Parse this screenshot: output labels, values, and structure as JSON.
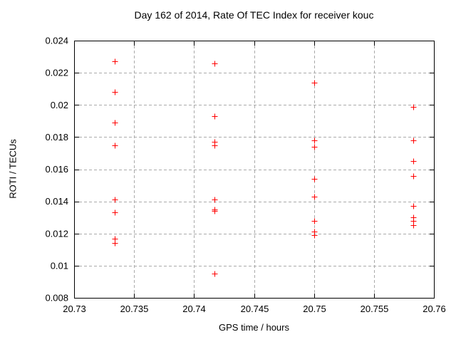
{
  "chart_data": {
    "type": "scatter",
    "title": "Day 162 of 2014, Rate Of TEC Index for receiver kouc",
    "xlabel": "GPS time / hours",
    "ylabel": "ROTI / TECUs",
    "xlim": [
      20.73,
      20.76
    ],
    "ylim": [
      0.008,
      0.024
    ],
    "xticks": [
      20.73,
      20.735,
      20.74,
      20.745,
      20.75,
      20.755,
      20.76
    ],
    "xtick_labels": [
      "20.73",
      "20.735",
      "20.74",
      "20.745",
      "20.75",
      "20.755",
      "20.76"
    ],
    "yticks": [
      0.008,
      0.01,
      0.012,
      0.014,
      0.016,
      0.018,
      0.02,
      0.022,
      0.024
    ],
    "ytick_labels": [
      "0.008",
      "0.01",
      "0.012",
      "0.014",
      "0.016",
      "0.018",
      "0.02",
      "0.022",
      "0.024"
    ],
    "grid": true,
    "legend": "none",
    "marker": {
      "shape": "plus",
      "color": "#ff0000",
      "size": 9
    },
    "series": [
      {
        "name": "ROTI",
        "points": [
          [
            20.7334,
            0.0227
          ],
          [
            20.7334,
            0.0208
          ],
          [
            20.7334,
            0.0189
          ],
          [
            20.7334,
            0.0175
          ],
          [
            20.7334,
            0.0141
          ],
          [
            20.7334,
            0.0133
          ],
          [
            20.7334,
            0.0117
          ],
          [
            20.7334,
            0.0114
          ],
          [
            20.7417,
            0.0226
          ],
          [
            20.7417,
            0.0193
          ],
          [
            20.7417,
            0.0177
          ],
          [
            20.7417,
            0.0175
          ],
          [
            20.7417,
            0.0141
          ],
          [
            20.7417,
            0.0135
          ],
          [
            20.7417,
            0.0134
          ],
          [
            20.7417,
            0.0095
          ],
          [
            20.75,
            0.0214
          ],
          [
            20.75,
            0.0178
          ],
          [
            20.75,
            0.0174
          ],
          [
            20.75,
            0.0154
          ],
          [
            20.75,
            0.0143
          ],
          [
            20.75,
            0.0128
          ],
          [
            20.75,
            0.0121
          ],
          [
            20.75,
            0.0119
          ],
          [
            20.7583,
            0.0199
          ],
          [
            20.7583,
            0.0178
          ],
          [
            20.7583,
            0.0165
          ],
          [
            20.7583,
            0.0156
          ],
          [
            20.7583,
            0.0137
          ],
          [
            20.7583,
            0.013
          ],
          [
            20.7583,
            0.0128
          ],
          [
            20.7583,
            0.0125
          ]
        ]
      }
    ]
  },
  "colors": {
    "background": "#ffffff",
    "axis": "#000000",
    "grid": "#aaaaaa",
    "text": "#000000",
    "marker": "#ff0000"
  }
}
